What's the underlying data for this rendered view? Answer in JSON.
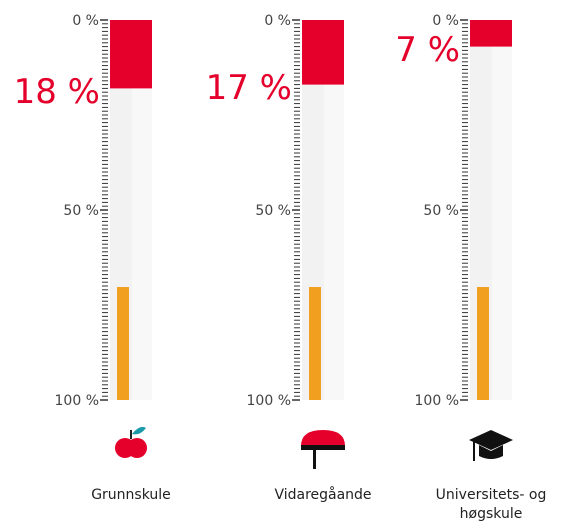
{
  "chart_data": {
    "type": "bar",
    "orientation": "inverted",
    "categories": [
      "Grunnskule",
      "Vidaregåande",
      "Universitets- og høgskule"
    ],
    "values": [
      18,
      17,
      7
    ],
    "value_labels": [
      "18 %",
      "17 %",
      "7 %"
    ],
    "color": "#e4002b",
    "ylim": [
      0,
      100
    ],
    "yticks": [
      {
        "value": 0,
        "label": "0 %"
      },
      {
        "value": 50,
        "label": "50 %"
      },
      {
        "value": 100,
        "label": "100 %"
      }
    ]
  }
}
